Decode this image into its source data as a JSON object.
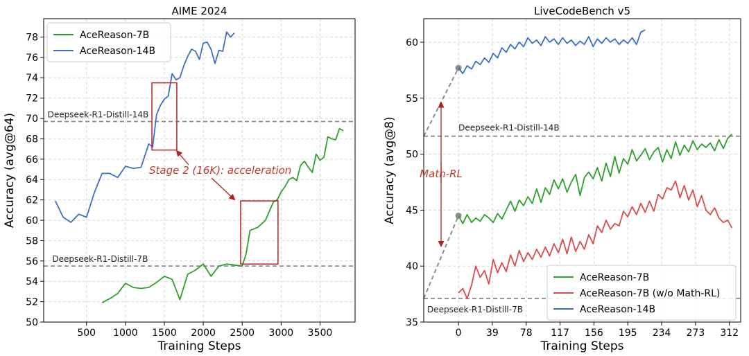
{
  "chart_data": [
    {
      "type": "line",
      "title": "AIME 2024",
      "xlabel": "Training Steps",
      "ylabel": "Accuracy (avg@64)",
      "xlim": [
        -50,
        3950
      ],
      "ylim": [
        50,
        79.8
      ],
      "xticks": [
        500,
        1000,
        1500,
        2000,
        2500,
        3000,
        3500
      ],
      "yticks": [
        50,
        52,
        54,
        56,
        58,
        60,
        62,
        64,
        66,
        68,
        70,
        72,
        74,
        76,
        78
      ],
      "grid": true,
      "legend_position": "top-left",
      "series": [
        {
          "name": "AceReason-7B",
          "color": "#2ca02c",
          "x": [
            700,
            800,
            900,
            1000,
            1100,
            1200,
            1300,
            1400,
            1500,
            1600,
            1700,
            1800,
            1900,
            2000,
            2100,
            2200,
            2300,
            2400,
            2500,
            2550,
            2600,
            2700,
            2800,
            2900,
            2950,
            3000,
            3050,
            3100,
            3150,
            3200,
            3250,
            3300,
            3350,
            3400,
            3450,
            3500,
            3550,
            3600,
            3650,
            3700,
            3750,
            3800
          ],
          "y": [
            51.9,
            52.3,
            52.8,
            53.8,
            53.4,
            53.3,
            53.4,
            53.9,
            54.5,
            54.2,
            52.2,
            54.7,
            55.1,
            55.7,
            54.5,
            55.5,
            55.7,
            55.6,
            55.5,
            56.7,
            59.0,
            59.3,
            60.0,
            61.8,
            62.0,
            62.8,
            63.3,
            64.0,
            64.2,
            63.9,
            65.4,
            65.8,
            65.2,
            64.7,
            66.5,
            65.9,
            66.2,
            68.2,
            68.0,
            67.9,
            69.0,
            68.8
          ]
        },
        {
          "name": "AceReason-14B",
          "color": "#3b6fc6",
          "x": [
            100,
            200,
            300,
            400,
            500,
            600,
            700,
            800,
            900,
            1000,
            1100,
            1200,
            1300,
            1350,
            1400,
            1450,
            1500,
            1550,
            1600,
            1650,
            1700,
            1750,
            1800,
            1850,
            1900,
            1950,
            2000,
            2050,
            2100,
            2150,
            2200,
            2250,
            2300,
            2350,
            2400
          ],
          "y": [
            61.9,
            60.3,
            59.8,
            60.6,
            60.3,
            62.7,
            64.6,
            64.6,
            64.2,
            65.3,
            65.1,
            65.2,
            67.5,
            67.2,
            70.4,
            71.3,
            71.9,
            72.2,
            74.4,
            73.8,
            74.0,
            75.2,
            76.1,
            76.8,
            76.6,
            75.8,
            77.4,
            77.5,
            76.8,
            75.4,
            76.7,
            76.6,
            78.5,
            78.0,
            78.4
          ]
        }
      ],
      "reference_lines": [
        {
          "label": "Deepseek-R1-Distill-14B",
          "y": 69.7
        },
        {
          "label": "Deepseek-R1-Distill-7B",
          "y": 55.5
        }
      ],
      "annotation": {
        "text": "Stage 2 (16K): acceleration",
        "color": "#c0392b",
        "boxes": [
          {
            "x0": 1340,
            "x1": 1660,
            "y0": 66.9,
            "y1": 73.5
          },
          {
            "x0": 2480,
            "x1": 2960,
            "y0": 55.7,
            "y1": 61.9
          }
        ]
      }
    },
    {
      "type": "line",
      "title": "LiveCodeBench v5",
      "xlabel": "Training Steps",
      "ylabel": "Accuracy (avg@8)",
      "xlim": [
        -40,
        325
      ],
      "ylim": [
        35,
        62.1
      ],
      "xticks": [
        0,
        39,
        78,
        117,
        156,
        195,
        234,
        273,
        312
      ],
      "yticks": [
        35,
        40,
        45,
        50,
        55,
        60
      ],
      "grid": true,
      "legend_position": "bottom-right",
      "series": [
        {
          "name": "AceReason-7B",
          "color": "#2ca02c",
          "x": [
            0,
            5,
            10,
            15,
            20,
            25,
            30,
            35,
            40,
            45,
            50,
            55,
            60,
            65,
            70,
            75,
            80,
            85,
            90,
            95,
            100,
            105,
            110,
            115,
            120,
            125,
            130,
            135,
            140,
            145,
            150,
            155,
            160,
            165,
            170,
            175,
            180,
            185,
            190,
            195,
            200,
            205,
            210,
            215,
            220,
            225,
            230,
            235,
            240,
            245,
            250,
            255,
            260,
            265,
            270,
            275,
            280,
            285,
            290,
            295,
            300,
            305,
            310,
            315
          ],
          "y": [
            44.5,
            43.8,
            44.6,
            43.9,
            44.3,
            44.0,
            44.6,
            44.3,
            43.9,
            44.7,
            44.2,
            45.0,
            45.8,
            44.9,
            45.9,
            45.4,
            46.2,
            45.6,
            46.9,
            45.7,
            47.0,
            46.4,
            47.7,
            46.9,
            47.8,
            46.6,
            47.5,
            48.2,
            46.3,
            47.9,
            48.4,
            47.8,
            48.8,
            47.6,
            49.2,
            48.0,
            49.8,
            48.3,
            49.6,
            49.1,
            50.4,
            49.4,
            49.9,
            50.5,
            49.5,
            50.2,
            50.6,
            49.3,
            50.4,
            49.6,
            51.1,
            49.9,
            50.8,
            50.2,
            51.2,
            50.4,
            50.9,
            50.6,
            51.0,
            50.3,
            51.3,
            50.5,
            51.4,
            51.8
          ]
        },
        {
          "name": "AceReason-7B (w/o Math-RL)",
          "color": "#d94c4c",
          "x": [
            0,
            5,
            10,
            15,
            20,
            25,
            30,
            35,
            40,
            45,
            50,
            55,
            60,
            65,
            70,
            75,
            80,
            85,
            90,
            95,
            100,
            105,
            110,
            115,
            120,
            125,
            130,
            135,
            140,
            145,
            150,
            155,
            160,
            165,
            170,
            175,
            180,
            185,
            190,
            195,
            200,
            205,
            210,
            215,
            220,
            225,
            230,
            235,
            240,
            245,
            250,
            255,
            260,
            265,
            270,
            275,
            280,
            285,
            290,
            295,
            300,
            305,
            310,
            315
          ],
          "y": [
            37.6,
            38.0,
            37.1,
            38.3,
            40.0,
            39.0,
            39.6,
            38.4,
            40.6,
            39.4,
            40.3,
            39.5,
            41.0,
            40.0,
            41.4,
            40.4,
            41.2,
            40.6,
            41.5,
            40.8,
            41.7,
            40.9,
            42.0,
            41.2,
            42.4,
            41.1,
            42.6,
            41.3,
            42.2,
            41.5,
            42.8,
            42.0,
            43.6,
            43.0,
            44.1,
            43.3,
            43.8,
            43.6,
            44.9,
            44.4,
            45.3,
            44.6,
            45.6,
            44.8,
            45.8,
            44.9,
            46.4,
            46.0,
            47.0,
            46.8,
            47.6,
            46.1,
            47.2,
            45.9,
            46.8,
            45.3,
            46.3,
            45.0,
            44.6,
            45.2,
            44.3,
            43.9,
            44.1,
            43.4
          ]
        },
        {
          "name": "AceReason-14B",
          "color": "#3b6fc6",
          "x": [
            0,
            5,
            10,
            15,
            20,
            25,
            30,
            35,
            40,
            45,
            50,
            55,
            60,
            65,
            70,
            75,
            80,
            85,
            90,
            95,
            100,
            105,
            110,
            115,
            120,
            125,
            130,
            135,
            140,
            145,
            150,
            155,
            160,
            165,
            170,
            175,
            180,
            185,
            190,
            195,
            200,
            205,
            210,
            215
          ],
          "y": [
            57.7,
            57.2,
            57.9,
            57.6,
            58.3,
            58.0,
            58.6,
            58.2,
            59.0,
            58.6,
            59.5,
            59.1,
            59.8,
            59.4,
            60.0,
            59.6,
            60.4,
            59.9,
            60.2,
            59.7,
            60.5,
            60.0,
            60.3,
            59.8,
            60.4,
            59.9,
            60.2,
            59.7,
            60.1,
            59.8,
            60.5,
            59.6,
            60.3,
            59.9,
            60.4,
            60.0,
            60.3,
            59.8,
            60.2,
            59.9,
            60.4,
            59.8,
            60.9,
            61.1
          ]
        }
      ],
      "reference_lines": [
        {
          "label": "Deepseek-R1-Distill-14B",
          "y": 51.6
        },
        {
          "label": "Deepseek-R1-Distill-7B",
          "y": 37.1
        }
      ],
      "init_points": [
        {
          "label": "Deepseek-R1-Distill-14B",
          "x_start": -40,
          "y_start": 51.6,
          "x_end": 0,
          "y_end": 57.7
        },
        {
          "label": "Deepseek-R1-Distill-7B",
          "x_start": -40,
          "y_start": 37.1,
          "x_end": 0,
          "y_end": 44.5
        }
      ],
      "annotation": {
        "text": "Math-RL",
        "color": "#c0392b",
        "arrow_x": -20,
        "arrow_up_to": 54.6,
        "arrow_down_to": 41.8,
        "label_y": 48.3
      }
    }
  ]
}
